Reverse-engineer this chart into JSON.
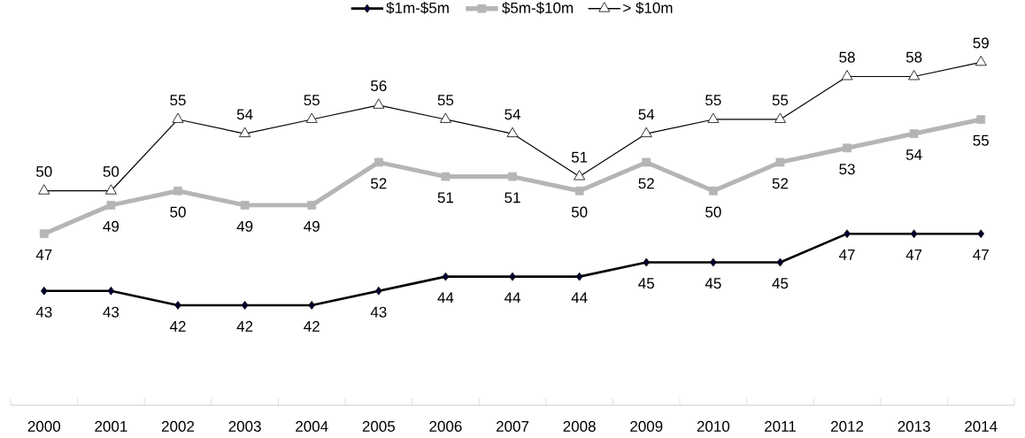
{
  "chart_data": {
    "type": "line",
    "categories": [
      "2000",
      "2001",
      "2002",
      "2003",
      "2004",
      "2005",
      "2006",
      "2007",
      "2008",
      "2009",
      "2010",
      "2011",
      "2012",
      "2013",
      "2014"
    ],
    "series": [
      {
        "name": "$1m-$5m",
        "color": "#000000",
        "marker": "diamond",
        "values": [
          43,
          43,
          42,
          42,
          42,
          43,
          44,
          44,
          44,
          45,
          45,
          45,
          47,
          47,
          47
        ]
      },
      {
        "name": "$5m-$10m",
        "color": "#b5b5b5",
        "marker": "square",
        "values": [
          47,
          49,
          50,
          49,
          49,
          52,
          51,
          51,
          50,
          52,
          50,
          52,
          53,
          54,
          55
        ]
      },
      {
        "name": "> $10m",
        "color": "#000000",
        "marker": "triangle",
        "values": [
          50,
          50,
          55,
          54,
          55,
          56,
          55,
          54,
          51,
          54,
          55,
          55,
          58,
          58,
          59
        ]
      }
    ],
    "data_labels": true,
    "legend": "top",
    "grid": false,
    "line_style": "solid"
  }
}
